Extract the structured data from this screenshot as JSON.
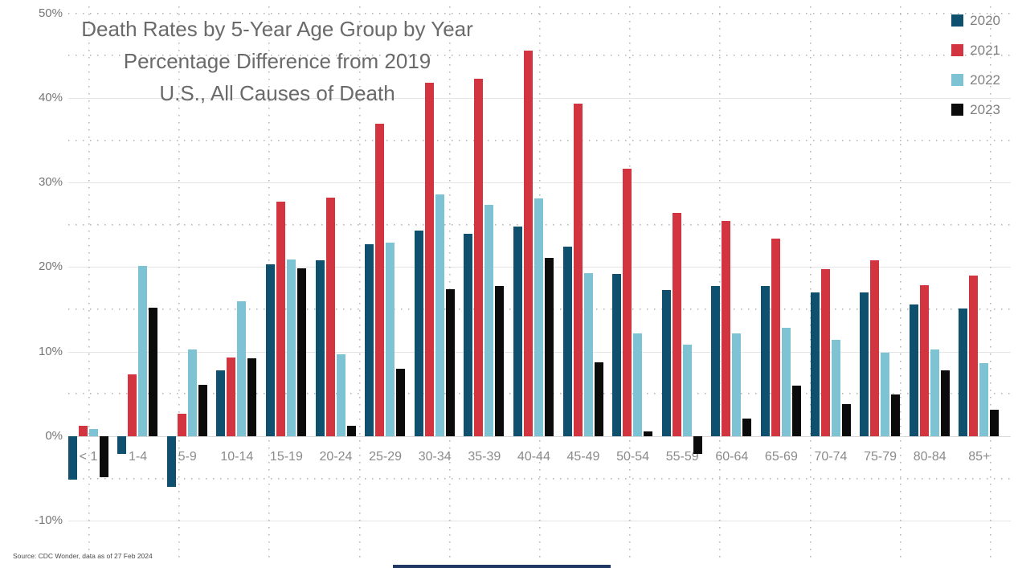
{
  "title_lines": [
    "Death Rates by 5-Year Age Group by Year",
    "Percentage Difference from 2019",
    "U.S., All Causes of Death"
  ],
  "source_note": "Source: CDC Wonder, data as of 27 Feb 2024",
  "colors": {
    "series_2020": "#0E506E",
    "series_2021": "#D23440",
    "series_2022": "#7EC3D3",
    "series_2023": "#0B0B0B",
    "gridline_solid": "#e4e4e4",
    "gridline_dotted": "#b5b5b5",
    "title_text": "#6a6a6a",
    "axis_text": "#8a8a8a",
    "footer_bar": "#1f3864"
  },
  "chart_data": {
    "type": "bar",
    "title": "Death Rates by 5-Year Age Group by Year",
    "subtitle": "Percentage Difference from 2019",
    "note": "U.S., All Causes of Death",
    "xlabel": "",
    "ylabel": "Percentage difference from 2019",
    "ylim": [
      -10,
      50
    ],
    "grid": "horizontal solid every 10%, horizontal dotted every 5%, vertical dotted column guides",
    "legend_position": "top-right",
    "y_tick_labels": [
      "50%",
      "40%",
      "30%",
      "20%",
      "10%",
      "0%",
      "-10%"
    ],
    "y_tick_values": [
      50,
      40,
      30,
      20,
      10,
      0,
      -10
    ],
    "categories": [
      "< 1",
      "1-4",
      "5-9",
      "10-14",
      "15-19",
      "20-24",
      "25-29",
      "30-34",
      "35-39",
      "40-44",
      "45-49",
      "50-54",
      "55-59",
      "60-64",
      "65-69",
      "70-74",
      "75-79",
      "80-84",
      "85+"
    ],
    "series": [
      {
        "name": "2020",
        "color": "#0E506E",
        "values": [
          -5.1,
          -2.1,
          -6.0,
          7.8,
          20.3,
          20.8,
          22.7,
          24.3,
          23.9,
          24.8,
          22.4,
          19.2,
          17.3,
          17.8,
          17.8,
          17.0,
          17.0,
          15.6,
          15.1
        ]
      },
      {
        "name": "2021",
        "color": "#D23440",
        "values": [
          1.2,
          7.3,
          2.7,
          9.3,
          27.7,
          28.2,
          37.0,
          41.8,
          42.3,
          45.6,
          39.3,
          31.6,
          26.4,
          25.5,
          23.4,
          19.8,
          20.8,
          17.9,
          19.0
        ]
      },
      {
        "name": "2022",
        "color": "#7EC3D3",
        "values": [
          0.9,
          20.1,
          10.3,
          16.0,
          20.9,
          9.7,
          22.9,
          28.6,
          27.4,
          28.1,
          19.3,
          12.2,
          10.8,
          12.2,
          12.8,
          11.4,
          9.9,
          10.3,
          8.6
        ]
      },
      {
        "name": "2023",
        "color": "#0B0B0B",
        "values": [
          -4.8,
          15.2,
          6.1,
          9.2,
          19.9,
          1.2,
          8.0,
          17.4,
          17.8,
          21.1,
          8.7,
          0.6,
          -2.1,
          2.1,
          6.0,
          3.8,
          4.9,
          7.8,
          3.1
        ]
      }
    ]
  }
}
